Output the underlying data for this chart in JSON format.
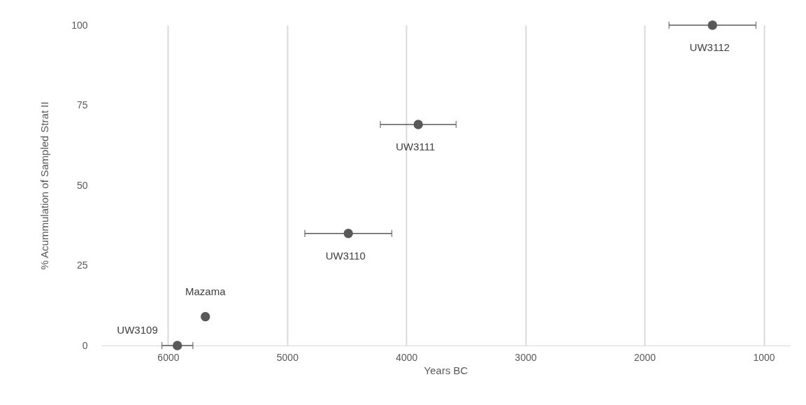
{
  "chart_data": {
    "type": "scatter",
    "xlabel": "Years BC",
    "ylabel": "% Acummulation of Sampled Strat II",
    "x": [
      5922,
      5687,
      4487,
      3900,
      1430
    ],
    "series": [
      {
        "color": "#595959",
        "values": [
          0,
          9,
          35,
          69,
          100
        ],
        "xerrors": [
          130,
          null,
          365,
          318,
          365
        ]
      }
    ],
    "xlim": [
      6560,
      780
    ],
    "xticks": [
      6000,
      5000,
      4000,
      3000,
      2000,
      1000
    ],
    "ylim": [
      0,
      100
    ],
    "yticks": [
      0,
      25,
      50,
      75,
      100
    ],
    "grid": "x",
    "marker": "circle",
    "annotations": [
      {
        "text": "UW3109",
        "x": 5922,
        "y": 0
      },
      {
        "text": "Mazama",
        "x": 5687,
        "y": 9
      },
      {
        "text": "UW3110",
        "x": 4487,
        "y": 35
      },
      {
        "text": "UW3111",
        "x": 3900,
        "y": 69
      },
      {
        "text": "UW3112",
        "x": 1430,
        "y": 100
      }
    ]
  }
}
